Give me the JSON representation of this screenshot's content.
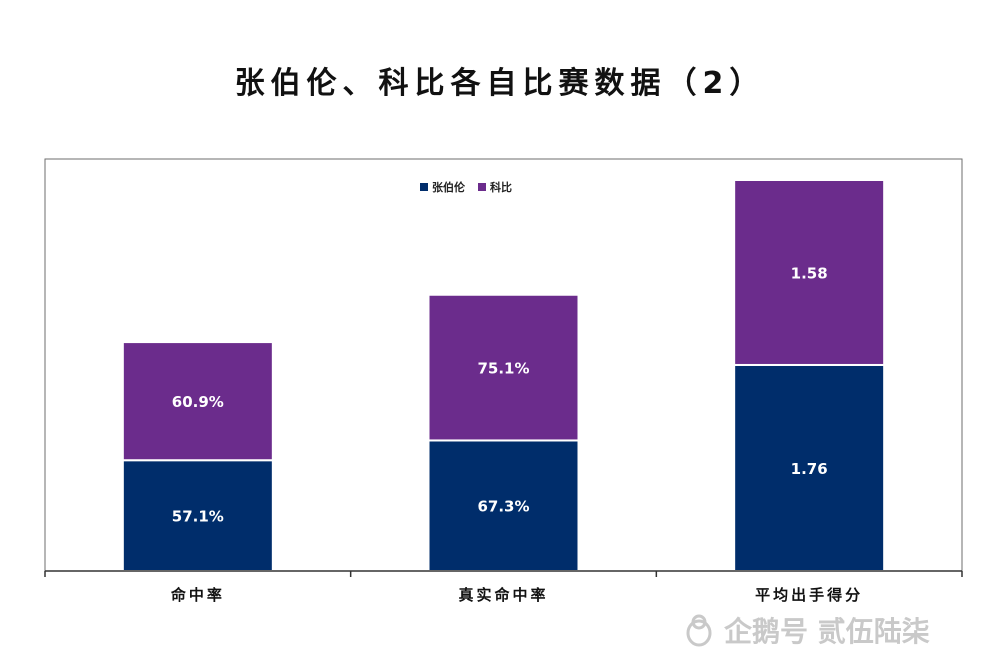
{
  "page": {
    "title": "张伯伦、科比各自比赛数据（2）",
    "watermark": "企鹅号 贰伍陆柒"
  },
  "chart_data": {
    "type": "bar",
    "stacked": true,
    "title": "张伯伦、科比各自比赛数据（2）",
    "categories": [
      "命中率",
      "真实命中率",
      "平均出手得分"
    ],
    "series": [
      {
        "name": "张伯伦",
        "color": "#002d6b",
        "values": [
          57.1,
          67.3,
          1.76
        ],
        "labels": [
          "57.1%",
          "67.3%",
          "1.76"
        ]
      },
      {
        "name": "科比",
        "color": "#6b2c8c",
        "values": [
          60.9,
          75.1,
          1.58
        ],
        "labels": [
          "60.9%",
          "75.1%",
          "1.58"
        ]
      }
    ],
    "legend": "top-center",
    "grid": false
  }
}
